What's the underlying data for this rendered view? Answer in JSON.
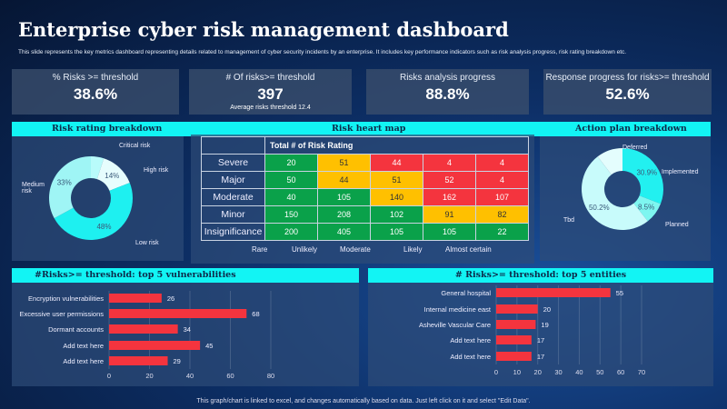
{
  "header": {
    "title": "Enterprise cyber risk management dashboard",
    "subtitle": "This slide represents the key metrics dashboard representing details related to management  of cyber security incidents by an enterprise. It includes key performance indicators such as risk analysis progress, risk rating breakdown etc."
  },
  "kpis": [
    {
      "label": "% Risks >= threshold",
      "value": "38.6%"
    },
    {
      "label": "# Of risks>= threshold",
      "value": "397",
      "sub": "Average risks threshold 12.4"
    },
    {
      "label": "Risks analysis progress",
      "value": "88.8%"
    },
    {
      "label": "Response progress for risks>= threshold",
      "value": "52.6%"
    }
  ],
  "sections": {
    "risk_rating": "Risk rating breakdown",
    "heat_map": "Risk heart map",
    "action_plan": "Action plan breakdown",
    "vulnerabilities": "#Risks>= threshold: top 5 vulnerabilities",
    "entities": "# Risks>= threshold: top 5 entities"
  },
  "chart_data": [
    {
      "type": "pie",
      "name": "risk-rating",
      "labels": [
        "Critical risk",
        "High risk",
        "Low risk",
        "Medium risk"
      ],
      "values": [
        5,
        14,
        48,
        33
      ],
      "value_labels": [
        "",
        "14%",
        "48%",
        "33%"
      ],
      "colors": [
        "#b8fbfb",
        "#e6fdfd",
        "#1ef0f0",
        "#9ff5f5"
      ]
    },
    {
      "type": "pie",
      "name": "action-plan",
      "labels": [
        "Implemented",
        "Planned",
        "Tbd",
        "Deferred"
      ],
      "values": [
        30.9,
        8.5,
        50.2,
        10.4
      ],
      "value_labels": [
        "30.9%",
        "8.5%",
        "50.2%",
        ""
      ],
      "colors": [
        "#22f0f0",
        "#7ef6f0",
        "#c8fbfb",
        "#e4fdfd"
      ]
    },
    {
      "type": "table",
      "name": "heat-map",
      "header": "Total # of Risk Rating",
      "rows": [
        "Severe",
        "Major",
        "Moderate",
        "Minor",
        "Insignificance"
      ],
      "columns": [
        "Rare",
        "Unlikely",
        "Moderate",
        "Likely",
        "Almost certain"
      ],
      "values": [
        [
          20,
          51,
          44,
          4,
          4
        ],
        [
          50,
          44,
          51,
          52,
          4
        ],
        [
          40,
          105,
          140,
          162,
          107
        ],
        [
          150,
          208,
          102,
          91,
          82
        ],
        [
          200,
          405,
          105,
          105,
          22
        ]
      ],
      "levels": [
        [
          "g",
          "y",
          "r",
          "r",
          "r"
        ],
        [
          "g",
          "y",
          "y",
          "r",
          "r"
        ],
        [
          "g",
          "g",
          "y",
          "r",
          "r"
        ],
        [
          "g",
          "g",
          "g",
          "y",
          "y"
        ],
        [
          "g",
          "g",
          "g",
          "g",
          "g"
        ]
      ]
    },
    {
      "type": "bar",
      "orientation": "horizontal",
      "name": "vulnerabilities",
      "categories": [
        "Encryption vulnerabilities",
        "Excessive user permissions",
        "Dormant accounts",
        "Add text here",
        "Add text here"
      ],
      "values": [
        26,
        68,
        34,
        45,
        29
      ],
      "xlim": [
        0,
        80
      ],
      "ticks": [
        0,
        20,
        40,
        60,
        80
      ],
      "color": "#f4343e"
    },
    {
      "type": "bar",
      "orientation": "horizontal",
      "name": "entities",
      "categories": [
        "General hospital",
        "Internal medicine east",
        "Asheville Vascular Care",
        "Add text here",
        "Add text here"
      ],
      "values": [
        55,
        20,
        19,
        17,
        17
      ],
      "xlim": [
        0,
        70
      ],
      "ticks": [
        0,
        10,
        20,
        30,
        40,
        50,
        60,
        70
      ],
      "color": "#f4343e"
    }
  ],
  "footer": "This graph/chart is linked to excel,  and changes automatically based on data. Just left click on it and select \"Edit Data\"."
}
